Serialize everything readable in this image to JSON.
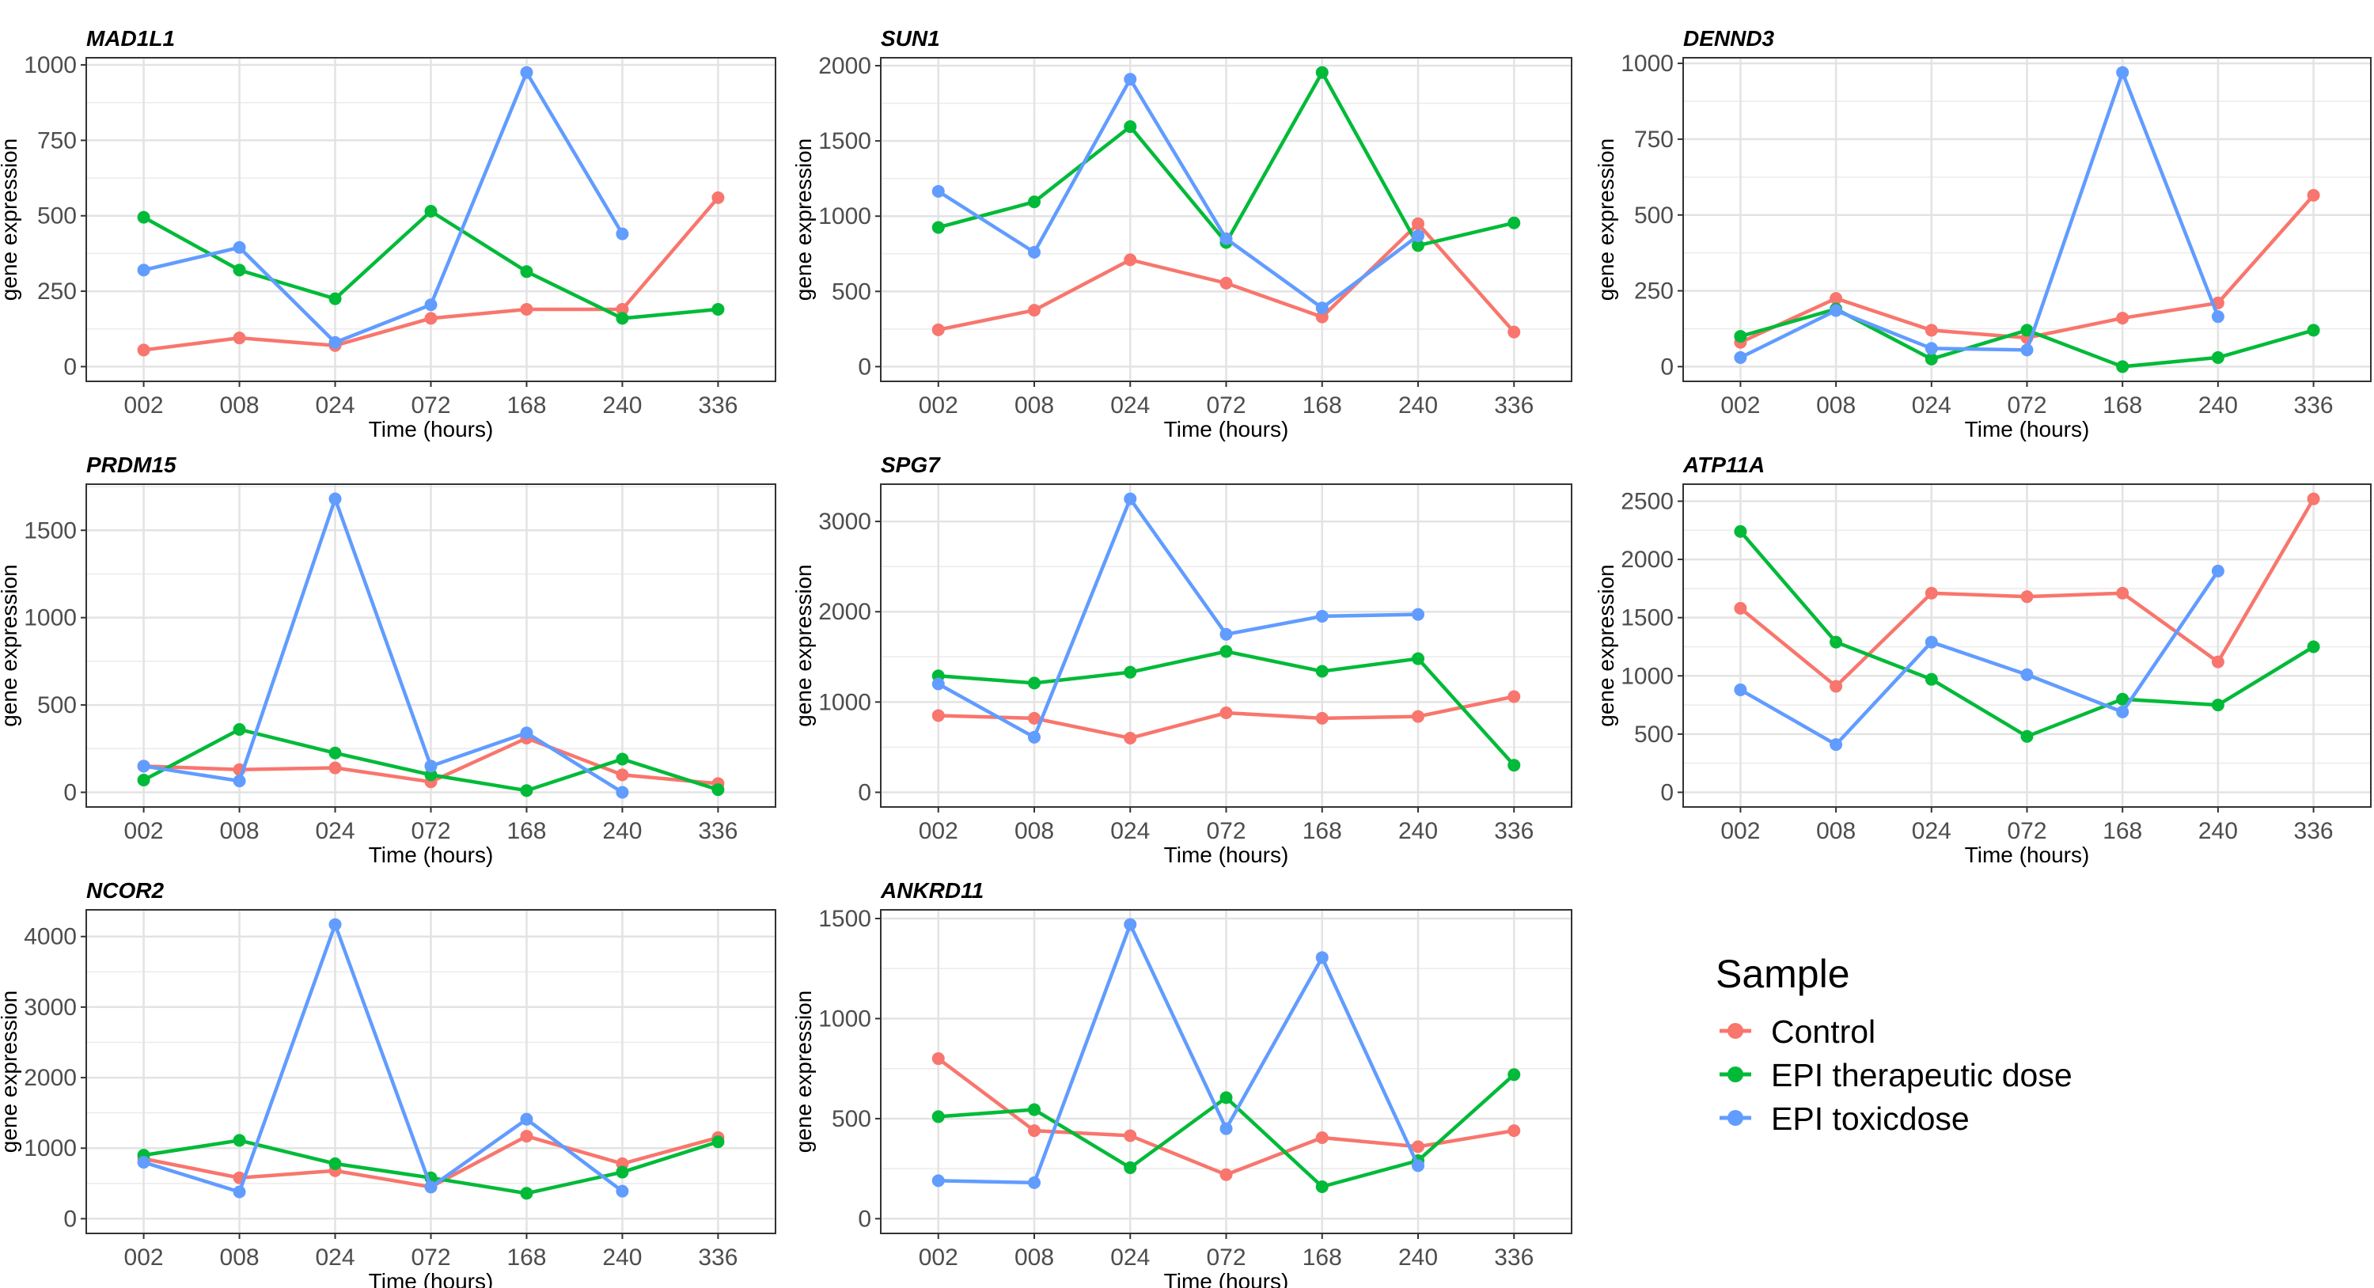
{
  "chart_data": {
    "type": "line",
    "facet_layout": "3 columns",
    "grid": true,
    "legend": {
      "title": "Sample",
      "placement": "bottom-right",
      "entries": [
        {
          "name": "Control",
          "color": "#F8766D"
        },
        {
          "name": "EPI therapeutic dose",
          "color": "#00BA38"
        },
        {
          "name": "EPI toxicdose",
          "color": "#619CFF"
        }
      ]
    },
    "xlabel": "Time (hours)",
    "ylabel": "gene expression",
    "categories": [
      "002",
      "008",
      "024",
      "072",
      "168",
      "240",
      "336"
    ],
    "panels": [
      {
        "title": "MAD1L1",
        "yticks": [
          0,
          250,
          500,
          750,
          1000
        ],
        "series": [
          [
            55,
            95,
            70,
            160,
            190,
            190,
            560
          ],
          [
            495,
            320,
            225,
            515,
            315,
            160,
            190
          ],
          [
            320,
            395,
            80,
            205,
            975,
            440,
            null
          ]
        ]
      },
      {
        "title": "SUN1",
        "yticks": [
          0,
          500,
          1000,
          1500,
          2000
        ],
        "series": [
          [
            245,
            375,
            710,
            555,
            330,
            950,
            230
          ],
          [
            925,
            1095,
            1595,
            825,
            1955,
            805,
            955
          ],
          [
            1165,
            760,
            1910,
            850,
            390,
            870,
            null
          ]
        ]
      },
      {
        "title": "DENND3",
        "yticks": [
          0,
          250,
          500,
          750,
          1000
        ],
        "series": [
          [
            80,
            225,
            120,
            95,
            160,
            210,
            565
          ],
          [
            100,
            190,
            25,
            120,
            0,
            30,
            120
          ],
          [
            30,
            185,
            60,
            55,
            970,
            165,
            null
          ]
        ]
      },
      {
        "title": "PRDM15",
        "yticks": [
          0,
          500,
          1000,
          1500
        ],
        "series": [
          [
            150,
            130,
            140,
            60,
            310,
            100,
            50
          ],
          [
            70,
            360,
            225,
            100,
            10,
            190,
            15
          ],
          [
            150,
            65,
            1680,
            150,
            340,
            0,
            null
          ]
        ]
      },
      {
        "title": "SPG7",
        "yticks": [
          0,
          1000,
          2000,
          3000
        ],
        "series": [
          [
            850,
            820,
            600,
            880,
            820,
            840,
            1060
          ],
          [
            1290,
            1210,
            1330,
            1560,
            1340,
            1480,
            300
          ],
          [
            1200,
            610,
            3250,
            1750,
            1950,
            1970,
            null
          ]
        ]
      },
      {
        "title": "ATP11A",
        "yticks": [
          0,
          500,
          1000,
          1500,
          2000,
          2500
        ],
        "series": [
          [
            1580,
            910,
            1710,
            1680,
            1710,
            1120,
            2520
          ],
          [
            2240,
            1290,
            970,
            480,
            800,
            750,
            1250
          ],
          [
            880,
            410,
            1290,
            1010,
            690,
            1900,
            null
          ]
        ]
      },
      {
        "title": "NCOR2",
        "yticks": [
          0,
          1000,
          2000,
          3000,
          4000
        ],
        "series": [
          [
            850,
            580,
            680,
            450,
            1170,
            780,
            1150
          ],
          [
            900,
            1110,
            780,
            580,
            360,
            660,
            1090
          ],
          [
            800,
            380,
            4170,
            450,
            1410,
            390,
            null
          ]
        ]
      },
      {
        "title": "ANKRD11",
        "yticks": [
          0,
          500,
          1000,
          1500
        ],
        "series": [
          [
            800,
            440,
            415,
            220,
            405,
            360,
            440
          ],
          [
            510,
            545,
            255,
            605,
            160,
            290,
            720
          ],
          [
            190,
            180,
            1470,
            450,
            1305,
            265,
            null
          ]
        ]
      }
    ]
  }
}
